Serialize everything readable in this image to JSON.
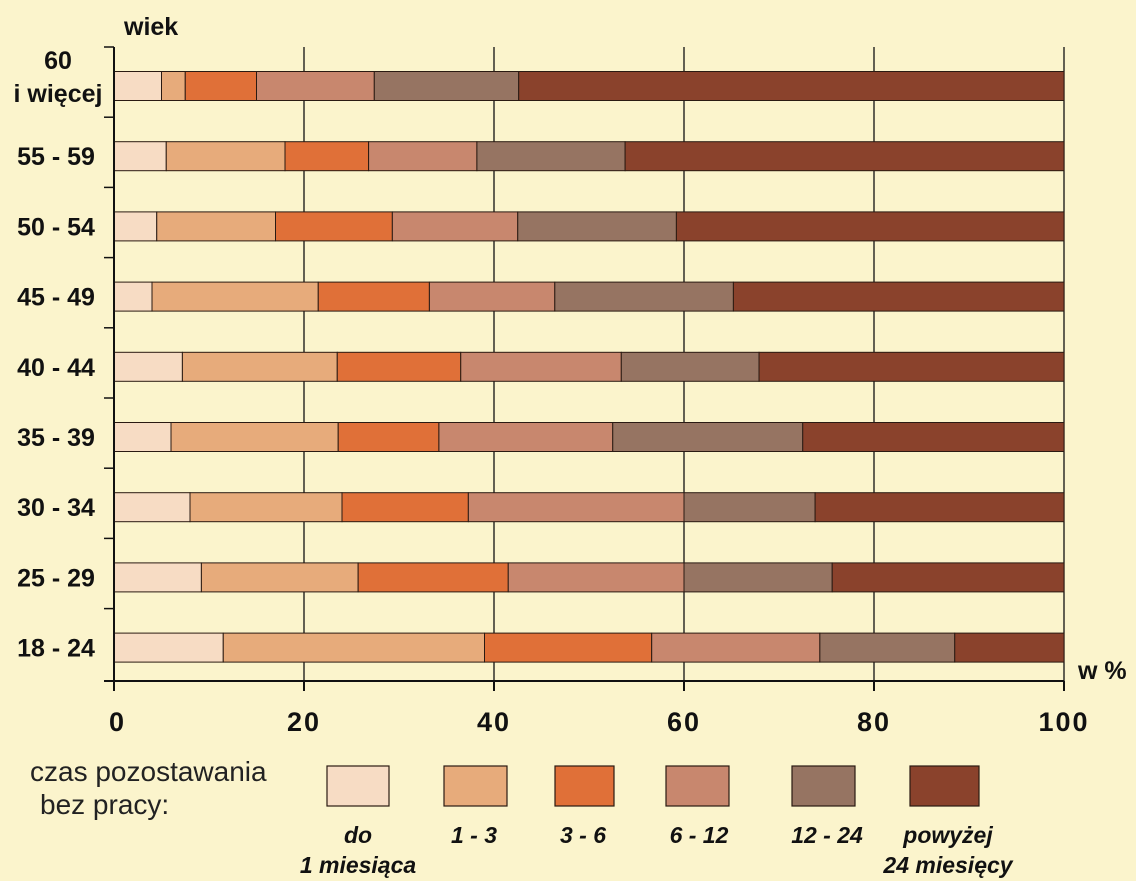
{
  "chart_data": {
    "type": "bar",
    "orientation": "horizontal",
    "stacked": true,
    "y_axis_title": "wiek",
    "x_axis_title": "w %",
    "xlim": [
      0,
      100
    ],
    "x_ticks": [
      "0",
      "20",
      "40",
      "60",
      "80",
      "100"
    ],
    "grid": true,
    "categories": [
      "60 i więcej",
      "55 - 59",
      "50 - 54",
      "45 - 49",
      "40 - 44",
      "35 - 39",
      "30 - 34",
      "25 - 29",
      "18 - 24"
    ],
    "series": [
      {
        "name": "do 1 miesiąca",
        "color": "#f7dcc4",
        "values": [
          5.0,
          5.5,
          4.5,
          4.0,
          7.2,
          6.0,
          8.0,
          9.2,
          11.5
        ]
      },
      {
        "name": "1 - 3",
        "color": "#e7ab7b",
        "values": [
          2.5,
          12.5,
          12.5,
          17.5,
          16.3,
          17.6,
          16.0,
          16.5,
          27.5
        ]
      },
      {
        "name": "3 - 6",
        "color": "#e07038",
        "values": [
          7.5,
          8.8,
          12.3,
          11.7,
          13.0,
          10.6,
          13.3,
          15.8,
          17.6
        ]
      },
      {
        "name": "6 - 12",
        "color": "#c8876e",
        "values": [
          12.4,
          11.4,
          13.2,
          13.2,
          16.9,
          18.3,
          22.7,
          18.5,
          17.7
        ]
      },
      {
        "name": "12 - 24",
        "color": "#967462",
        "values": [
          15.2,
          15.6,
          16.7,
          18.8,
          14.5,
          20.0,
          13.8,
          15.6,
          14.2
        ]
      },
      {
        "name": "powyżej 24 miesięcy",
        "color": "#8a422c",
        "values": [
          57.4,
          46.2,
          40.8,
          34.8,
          32.1,
          27.5,
          26.2,
          24.4,
          11.5
        ]
      }
    ]
  },
  "legend": {
    "title_lines": [
      "czas pozostawania",
      "bez pracy:"
    ],
    "items": [
      {
        "lines": [
          "do",
          "1 miesiąca"
        ],
        "color": "#f7dcc4"
      },
      {
        "lines": [
          "1 - 3"
        ],
        "color": "#e7ab7b"
      },
      {
        "lines": [
          "3 - 6"
        ],
        "color": "#e07038"
      },
      {
        "lines": [
          "6 - 12"
        ],
        "color": "#c8876e"
      },
      {
        "lines": [
          "12 - 24"
        ],
        "color": "#967462"
      },
      {
        "lines": [
          "powyżej",
          "24 miesięcy"
        ],
        "color": "#8a422c"
      }
    ]
  }
}
